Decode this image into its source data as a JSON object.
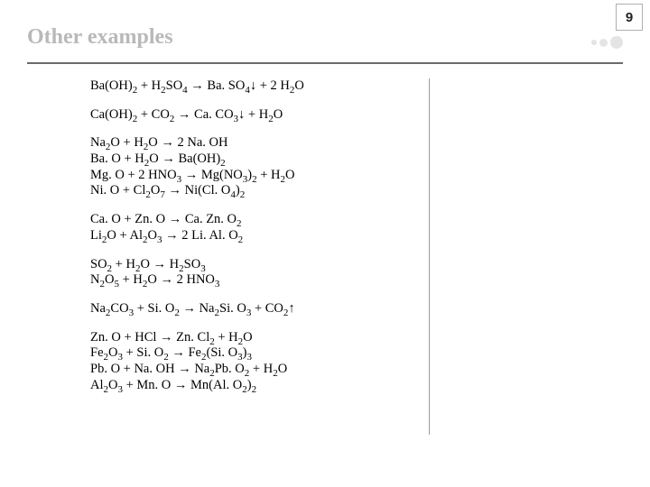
{
  "page": {
    "title": "Other examples",
    "number": "9"
  },
  "colors": {
    "title": "#b9b9b9",
    "rule": "#6a6a6a",
    "text": "#000000",
    "dot": "#e4e4e4",
    "border": "#b0b0b0",
    "vline": "#9a9a9a"
  },
  "equations": {
    "g1": {
      "e1": "Ba(OH)<sub>2</sub> + H<sub>2</sub>SO<sub>4</sub> → Ba. SO<sub>4</sub>↓ + 2 H<sub>2</sub>O"
    },
    "g2": {
      "e1": "Ca(OH)<sub>2</sub> + CO<sub>2</sub> → Ca. CO<sub>3</sub>↓ + H<sub>2</sub>O"
    },
    "g3": {
      "e1": "Na<sub>2</sub>O + H<sub>2</sub>O → 2 Na. OH",
      "e2": "Ba. O + H<sub>2</sub>O → Ba(OH)<sub>2</sub>",
      "e3": "Mg. O + 2 HNO<sub>3</sub> → Mg(NO<sub>3</sub>)<sub>2</sub> + H<sub>2</sub>O",
      "e4": "Ni. O + Cl<sub>2</sub>O<sub>7</sub>  → Ni(Cl. O<sub>4</sub>)<sub>2</sub>"
    },
    "g4": {
      "e1": "Ca. O + Zn. O → Ca. Zn. O<sub>2</sub>",
      "e2": "Li<sub>2</sub>O + Al<sub>2</sub>O<sub>3</sub> → 2 Li. Al. O<sub>2</sub>"
    },
    "g5": {
      "e1": "SO<sub>2</sub> + H<sub>2</sub>O → H<sub>2</sub>SO<sub>3</sub>",
      "e2": "N<sub>2</sub>O<sub>5</sub> + H<sub>2</sub>O → 2 HNO<sub>3</sub>"
    },
    "g6": {
      "e1": "Na<sub>2</sub>CO<sub>3</sub> + Si. O<sub>2</sub> → Na<sub>2</sub>Si. O<sub>3</sub> + CO<sub>2</sub>↑"
    },
    "g7": {
      "e1": "Zn. O + HCl → Zn. Cl<sub>2</sub> + H<sub>2</sub>O",
      "e2": "Fe<sub>2</sub>O<sub>3</sub> + Si. O<sub>2</sub> →  Fe<sub>2</sub>(Si. O<sub>3</sub>)<sub>3</sub>",
      "e3": "Pb. O  + Na. OH → Na<sub>2</sub>Pb. O<sub>2</sub> + H<sub>2</sub>O",
      "e4": "Al<sub>2</sub>O<sub>3</sub> + Mn. O → Mn(Al. O<sub>2</sub>)<sub>2</sub>"
    }
  }
}
